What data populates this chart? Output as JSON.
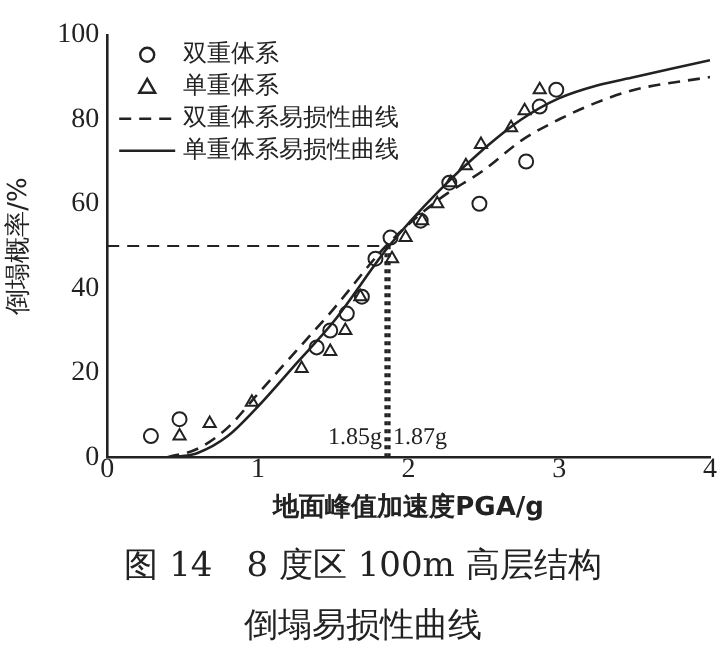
{
  "chart_data": {
    "type": "scatter",
    "xlabel": "地面峰值加速度PGA/g",
    "ylabel": "倒塌概率/%",
    "xlim": [
      0,
      4
    ],
    "xticks": [
      0,
      1,
      2,
      3,
      4
    ],
    "ylim": [
      0,
      100
    ],
    "yticks": [
      0,
      20,
      40,
      60,
      80,
      100
    ],
    "grid": false,
    "legend": "top left",
    "series": [
      {
        "name": "双重体系",
        "type": "scatter",
        "marker": "circle",
        "color": "#222222",
        "x": [
          0.29,
          0.48,
          1.39,
          1.48,
          1.59,
          1.69,
          1.78,
          1.88,
          2.08,
          2.27,
          2.47,
          2.78,
          2.87,
          2.98
        ],
        "values": [
          5,
          9,
          26,
          30,
          34,
          38,
          47,
          52,
          56,
          65,
          60,
          70,
          83,
          87
        ]
      },
      {
        "name": "单重体系",
        "type": "scatter",
        "marker": "triangle",
        "color": "#222222",
        "x": [
          0.48,
          0.68,
          0.96,
          1.29,
          1.48,
          1.58,
          1.68,
          1.89,
          1.98,
          2.09,
          2.19,
          2.28,
          2.38,
          2.48,
          2.68,
          2.77,
          2.87
        ],
        "values": [
          5,
          8,
          13,
          21,
          25,
          30,
          38,
          47,
          52,
          56,
          60,
          65,
          69,
          74,
          78,
          82,
          87
        ]
      },
      {
        "name": "双重体系易损性曲线",
        "type": "line",
        "line_style": "dashed",
        "color": "#222222",
        "x": [
          0.4,
          0.6,
          0.8,
          1,
          1.25,
          1.5,
          1.85,
          2.2,
          2.5,
          2.75,
          3,
          3.25,
          3.5,
          4
        ],
        "values": [
          0,
          2,
          7,
          15,
          25,
          35,
          50,
          61,
          68,
          75,
          80,
          84,
          87,
          90
        ]
      },
      {
        "name": "单重体系易损性曲线",
        "type": "line",
        "line_style": "solid",
        "color": "#222222",
        "x": [
          0.45,
          0.6,
          0.8,
          1,
          1.25,
          1.5,
          1.87,
          2.2,
          2.5,
          2.75,
          3,
          3.25,
          3.5,
          4
        ],
        "values": [
          0,
          1,
          5,
          12,
          22,
          32,
          50,
          63,
          73,
          80,
          85,
          88,
          90,
          94
        ]
      }
    ],
    "ref_lines": [
      {
        "axis": "y",
        "value": 50,
        "label": null,
        "line_style": "dashed"
      },
      {
        "axis": "x",
        "value": 1.85,
        "label": "1.85g",
        "line_style": "dotted"
      },
      {
        "axis": "x",
        "value": 1.87,
        "label": "1.87g",
        "line_style": "dotted"
      }
    ],
    "annotations": [
      "图 14　8 度区 100m 高层结构",
      "倒塌易损性曲线"
    ]
  }
}
